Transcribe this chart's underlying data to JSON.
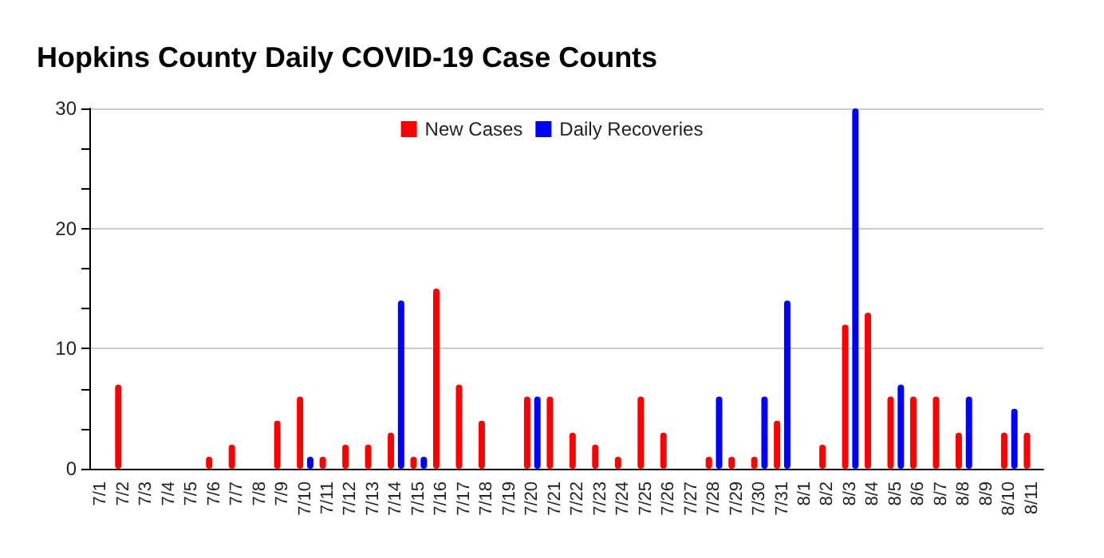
{
  "chart_data": {
    "type": "bar",
    "title": "Hopkins County Daily COVID-19 Case Counts",
    "categories": [
      "7/1",
      "7/2",
      "7/3",
      "7/4",
      "7/5",
      "7/6",
      "7/7",
      "7/8",
      "7/9",
      "7/10",
      "7/11",
      "7/12",
      "7/13",
      "7/14",
      "7/15",
      "7/16",
      "7/17",
      "7/18",
      "7/19",
      "7/20",
      "7/21",
      "7/22",
      "7/23",
      "7/24",
      "7/25",
      "7/26",
      "7/27",
      "7/28",
      "7/29",
      "7/30",
      "7/31",
      "8/1",
      "8/2",
      "8/3",
      "8/4",
      "8/5",
      "8/6",
      "8/7",
      "8/8",
      "8/9",
      "8/10",
      "8/11"
    ],
    "series": [
      {
        "name": "New Cases",
        "color": "#ff0000",
        "values": [
          0,
          7,
          0,
          0,
          0,
          1,
          2,
          0,
          4,
          6,
          1,
          2,
          2,
          3,
          1,
          15,
          7,
          4,
          0,
          6,
          6,
          3,
          2,
          1,
          6,
          3,
          0,
          1,
          1,
          1,
          4,
          0,
          2,
          12,
          13,
          6,
          6,
          6,
          3,
          0,
          3,
          3
        ]
      },
      {
        "name": "Daily Recoveries",
        "color": "#0000ff",
        "values": [
          0,
          0,
          0,
          0,
          0,
          0,
          0,
          0,
          0,
          1,
          0,
          0,
          0,
          14,
          1,
          0,
          0,
          0,
          0,
          6,
          0,
          0,
          0,
          0,
          0,
          0,
          0,
          6,
          0,
          6,
          14,
          0,
          0,
          30,
          0,
          7,
          0,
          0,
          6,
          0,
          5,
          0
        ]
      }
    ],
    "ylim": [
      0,
      30
    ],
    "yticks": [
      0,
      {
        "value": 3.333,
        "label": null
      },
      {
        "value": 6.667,
        "label": null
      },
      10,
      {
        "value": 13.333,
        "label": null
      },
      {
        "value": 16.667,
        "label": null
      },
      20,
      {
        "value": 23.333,
        "label": null
      },
      {
        "value": 26.667,
        "label": null
      },
      30
    ],
    "grid": "y",
    "legend": "top"
  }
}
